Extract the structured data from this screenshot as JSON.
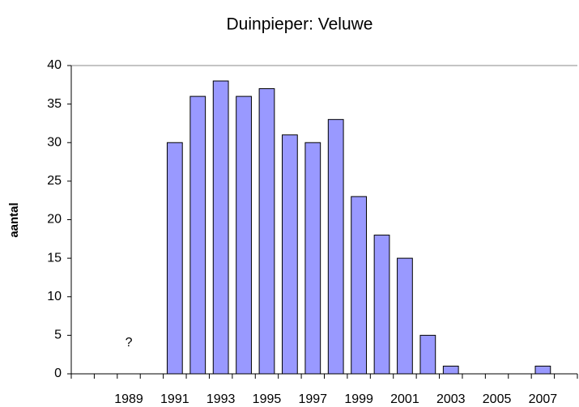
{
  "chart_data": {
    "type": "bar",
    "title": "Duinpieper: Veluwe",
    "y_label": "aantal",
    "categories": [
      null,
      null,
      "1989",
      null,
      "1991",
      null,
      "1993",
      null,
      "1995",
      null,
      "1997",
      null,
      "1999",
      null,
      "2001",
      null,
      "2003",
      null,
      "2005",
      null,
      "2007",
      null
    ],
    "values": [
      null,
      null,
      null,
      null,
      30,
      36,
      38,
      36,
      37,
      31,
      30,
      33,
      23,
      18,
      15,
      5,
      1,
      null,
      null,
      null,
      1,
      null
    ],
    "color": "#9999ff",
    "ylim": [
      0,
      40
    ],
    "yticks": [
      0,
      5,
      10,
      15,
      20,
      25,
      30,
      35,
      40
    ],
    "annotations": [
      {
        "text": "?",
        "category_index": 2,
        "y": 4
      }
    ]
  }
}
